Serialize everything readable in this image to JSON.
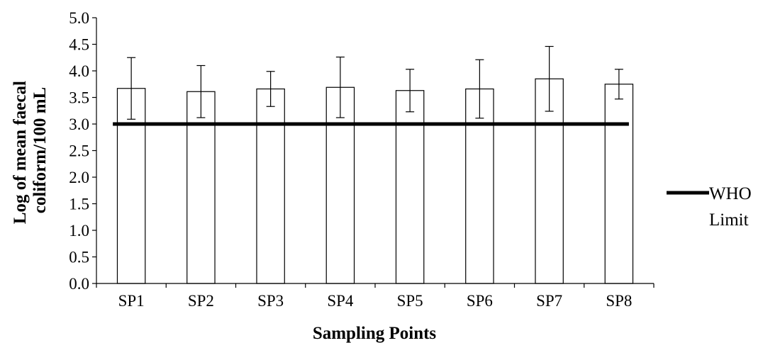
{
  "chart_data": {
    "type": "bar",
    "categories": [
      "SP1",
      "SP2",
      "SP3",
      "SP4",
      "SP5",
      "SP6",
      "SP7",
      "SP8"
    ],
    "series": [
      {
        "values": [
          3.67,
          3.61,
          3.66,
          3.69,
          3.63,
          3.66,
          3.85,
          3.75
        ],
        "error": [
          0.58,
          0.49,
          0.33,
          0.57,
          0.4,
          0.55,
          0.61,
          0.28
        ],
        "fill": "#ffffff",
        "stroke": "#000000"
      }
    ],
    "reference_lines": [
      {
        "name": "WHO Limit",
        "legend_lines": [
          "WHO",
          "Limit"
        ],
        "value": 3.0,
        "color": "#000000"
      }
    ],
    "ylim": [
      0,
      5
    ],
    "ytick_step": 0.5,
    "ytick_labels": [
      "0.0",
      "0.5",
      "1.0",
      "1.5",
      "2.0",
      "2.5",
      "3.0",
      "3.5",
      "4.0",
      "4.5",
      "5.0"
    ],
    "xlabel": "Sampling Points",
    "ylabel_lines": [
      "Log of mean faecal",
      "coliform/100 mL"
    ],
    "grid": false,
    "legend_position": "right"
  }
}
